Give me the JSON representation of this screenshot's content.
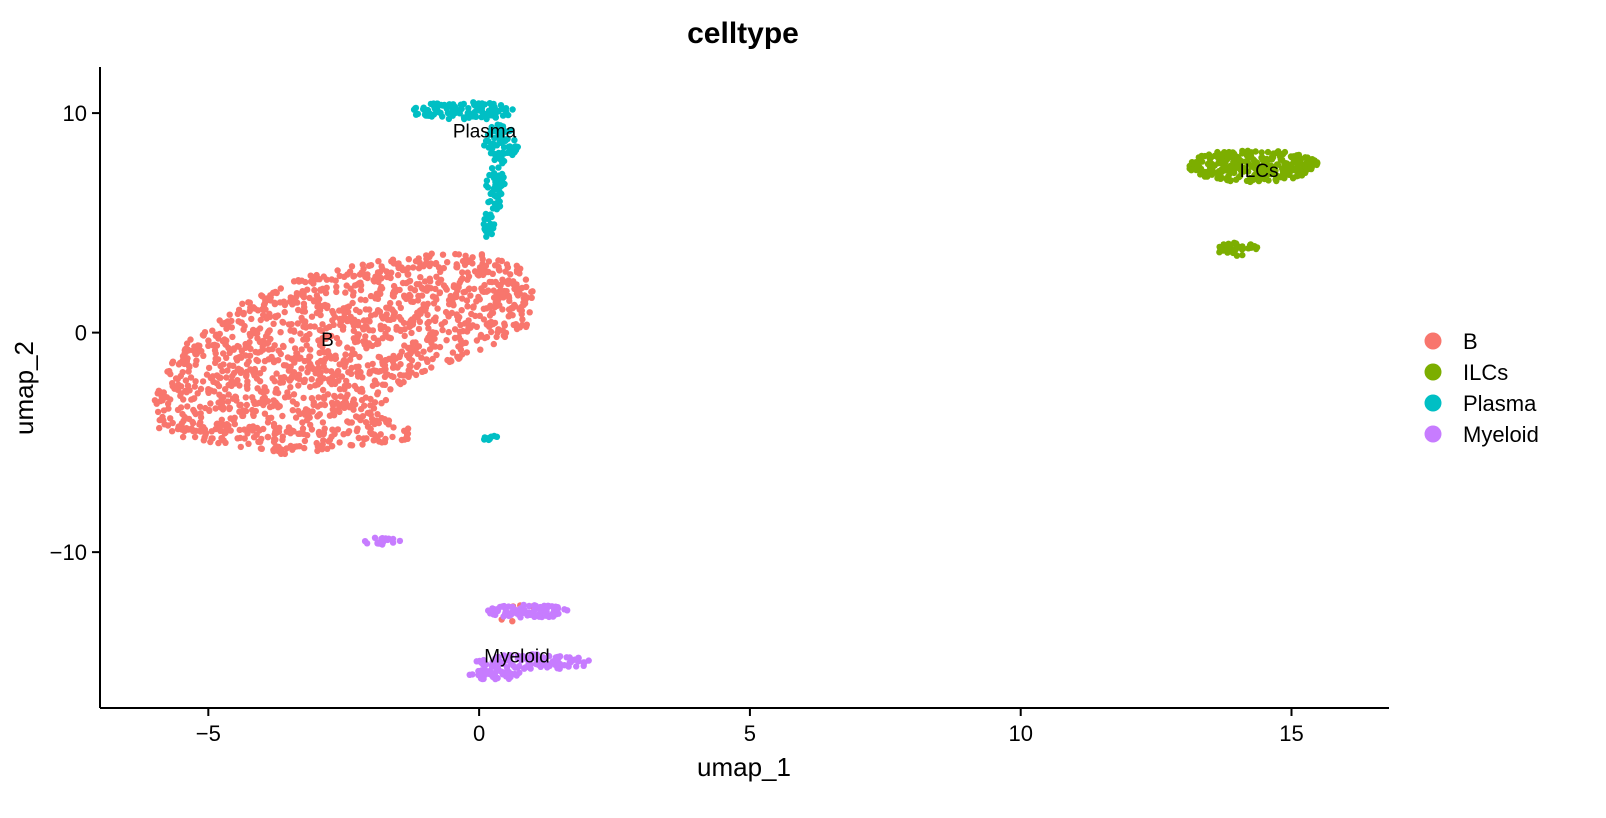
{
  "chart_data": {
    "type": "scatter",
    "title": "celltype",
    "xlabel": "umap_1",
    "ylabel": "umap_2",
    "xlim": [
      -7,
      16.8
    ],
    "ylim": [
      -17.1,
      12.1
    ],
    "x_ticks": [
      -5,
      0,
      5,
      10,
      15
    ],
    "y_ticks": [
      -10,
      0,
      10
    ],
    "x_tick_labels": [
      "−5",
      "0",
      "5",
      "10",
      "15"
    ],
    "y_tick_labels": [
      "−10",
      "0",
      "10"
    ],
    "grid": false,
    "legend_position": "right",
    "series": [
      {
        "name": "B",
        "color": "#F8766D",
        "regions": [
          {
            "shape": "polygon",
            "n": 1500,
            "poly": [
              [
                -6.0,
                -3.0
              ],
              [
                -5.6,
                -0.8
              ],
              [
                -4.5,
                1.2
              ],
              [
                -3.0,
                2.8
              ],
              [
                -1.2,
                3.6
              ],
              [
                0.2,
                3.6
              ],
              [
                0.8,
                3.0
              ],
              [
                1.0,
                2.0
              ],
              [
                0.9,
                0.3
              ],
              [
                0.4,
                -0.5
              ],
              [
                -0.5,
                -1.3
              ],
              [
                -1.5,
                -2.4
              ],
              [
                -1.8,
                -3.8
              ],
              [
                -1.3,
                -4.2
              ],
              [
                -1.3,
                -5.0
              ],
              [
                -2.5,
                -5.2
              ],
              [
                -3.5,
                -5.6
              ],
              [
                -4.5,
                -5.2
              ],
              [
                -5.5,
                -4.8
              ],
              [
                -6.0,
                -4.3
              ]
            ]
          },
          {
            "shape": "ellipse",
            "n": 3,
            "cx": 1.0,
            "cy": -12.4,
            "rx": 0.4,
            "ry": 0.3
          },
          {
            "shape": "ellipse",
            "n": 2,
            "cx": 0.6,
            "cy": -13.0,
            "rx": 0.2,
            "ry": 0.2
          }
        ]
      },
      {
        "name": "ILCs",
        "color": "#7CAE00",
        "regions": [
          {
            "shape": "ellipse",
            "n": 300,
            "cx": 14.3,
            "cy": 7.6,
            "rx": 1.2,
            "ry": 0.75
          },
          {
            "shape": "ellipse",
            "n": 40,
            "cx": 14.0,
            "cy": 3.8,
            "rx": 0.38,
            "ry": 0.3
          }
        ]
      },
      {
        "name": "Plasma",
        "color": "#00BFC4",
        "regions": [
          {
            "shape": "ellipse",
            "n": 110,
            "cx": -0.3,
            "cy": 10.1,
            "rx": 0.95,
            "ry": 0.42
          },
          {
            "shape": "ellipse",
            "n": 70,
            "cx": 0.4,
            "cy": 8.6,
            "rx": 0.32,
            "ry": 0.9
          },
          {
            "shape": "ellipse",
            "n": 50,
            "cx": 0.3,
            "cy": 6.6,
            "rx": 0.18,
            "ry": 1.0
          },
          {
            "shape": "ellipse",
            "n": 25,
            "cx": 0.15,
            "cy": 4.9,
            "rx": 0.13,
            "ry": 0.55
          },
          {
            "shape": "ellipse",
            "n": 10,
            "cx": 0.2,
            "cy": -4.8,
            "rx": 0.16,
            "ry": 0.12
          }
        ]
      },
      {
        "name": "Myeloid",
        "color": "#C77CFF",
        "regions": [
          {
            "shape": "ellipse",
            "n": 18,
            "cx": -1.8,
            "cy": -9.5,
            "rx": 0.35,
            "ry": 0.18
          },
          {
            "shape": "ellipse",
            "n": 80,
            "cx": 0.9,
            "cy": -12.7,
            "rx": 0.75,
            "ry": 0.3
          },
          {
            "shape": "ellipse",
            "n": 110,
            "cx": 1.0,
            "cy": -15.0,
            "rx": 1.1,
            "ry": 0.35
          },
          {
            "shape": "ellipse",
            "n": 50,
            "cx": 0.3,
            "cy": -15.6,
            "rx": 0.5,
            "ry": 0.25
          }
        ]
      }
    ],
    "cluster_labels": [
      {
        "text": "B",
        "x": -2.8,
        "y": -0.3
      },
      {
        "text": "ILCs",
        "x": 14.4,
        "y": 7.4
      },
      {
        "text": "Plasma",
        "x": 0.1,
        "y": 9.2
      },
      {
        "text": "Myeloid",
        "x": 0.7,
        "y": -14.7
      }
    ]
  }
}
